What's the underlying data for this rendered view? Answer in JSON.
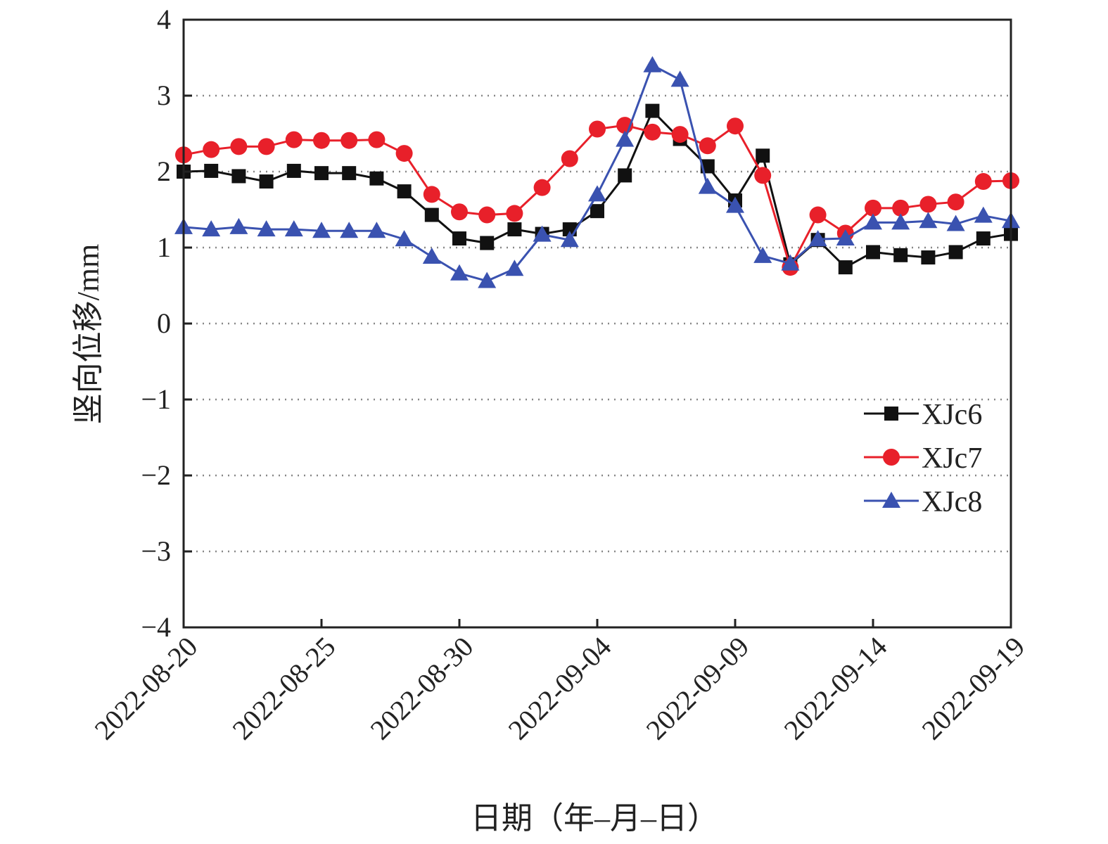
{
  "chart_data": {
    "type": "line",
    "title": "",
    "xlabel": "日期（年–月–日）",
    "ylabel": "竖向位移/mm",
    "ylim": [
      -4,
      4
    ],
    "yticks": [
      "4",
      "3",
      "2",
      "1",
      "0",
      "−1",
      "−2",
      "−3",
      "−4"
    ],
    "ytick_values": [
      4,
      3,
      2,
      1,
      0,
      -1,
      -2,
      -3,
      -4
    ],
    "xticks": [
      "2022-08-20",
      "2022-08-25",
      "2022-08-30",
      "2022-09-04",
      "2022-09-09",
      "2022-09-14",
      "2022-09-19"
    ],
    "xtick_days": [
      0,
      5,
      10,
      15,
      20,
      25,
      30
    ],
    "x_start": "2022-08-20",
    "x_days": [
      0,
      1,
      2,
      3,
      4,
      5,
      6,
      7,
      8,
      9,
      10,
      11,
      12,
      13,
      14,
      15,
      16,
      17,
      18,
      19,
      20,
      21,
      22,
      23,
      24,
      25,
      26,
      27,
      28,
      29,
      30
    ],
    "grid": "horizontal dotted",
    "legend_position": "right-middle",
    "series": [
      {
        "name": "XJc6",
        "color": "#111111",
        "marker": "square",
        "values": [
          2.0,
          2.01,
          1.94,
          1.87,
          2.01,
          1.98,
          1.98,
          1.91,
          1.74,
          1.43,
          1.12,
          1.06,
          1.24,
          1.18,
          1.24,
          1.48,
          1.95,
          2.8,
          2.43,
          2.07,
          1.62,
          2.21,
          0.78,
          1.1,
          0.74,
          0.94,
          0.9,
          0.87,
          0.94,
          1.12,
          1.18
        ]
      },
      {
        "name": "XJc7",
        "color": "#e8202a",
        "marker": "circle",
        "values": [
          2.22,
          2.29,
          2.33,
          2.33,
          2.42,
          2.41,
          2.41,
          2.42,
          2.24,
          1.7,
          1.47,
          1.43,
          1.45,
          1.79,
          2.17,
          2.56,
          2.61,
          2.52,
          2.49,
          2.34,
          2.6,
          1.95,
          0.74,
          1.43,
          1.19,
          1.52,
          1.52,
          1.57,
          1.6,
          1.87,
          1.88
        ]
      },
      {
        "name": "XJc8",
        "color": "#3a52b0",
        "marker": "triangle",
        "values": [
          1.27,
          1.24,
          1.27,
          1.24,
          1.24,
          1.22,
          1.22,
          1.22,
          1.11,
          0.88,
          0.66,
          0.56,
          0.72,
          1.17,
          1.1,
          1.7,
          2.42,
          3.4,
          3.21,
          1.8,
          1.55,
          0.89,
          0.79,
          1.11,
          1.12,
          1.33,
          1.33,
          1.35,
          1.31,
          1.42,
          1.35
        ]
      }
    ]
  }
}
